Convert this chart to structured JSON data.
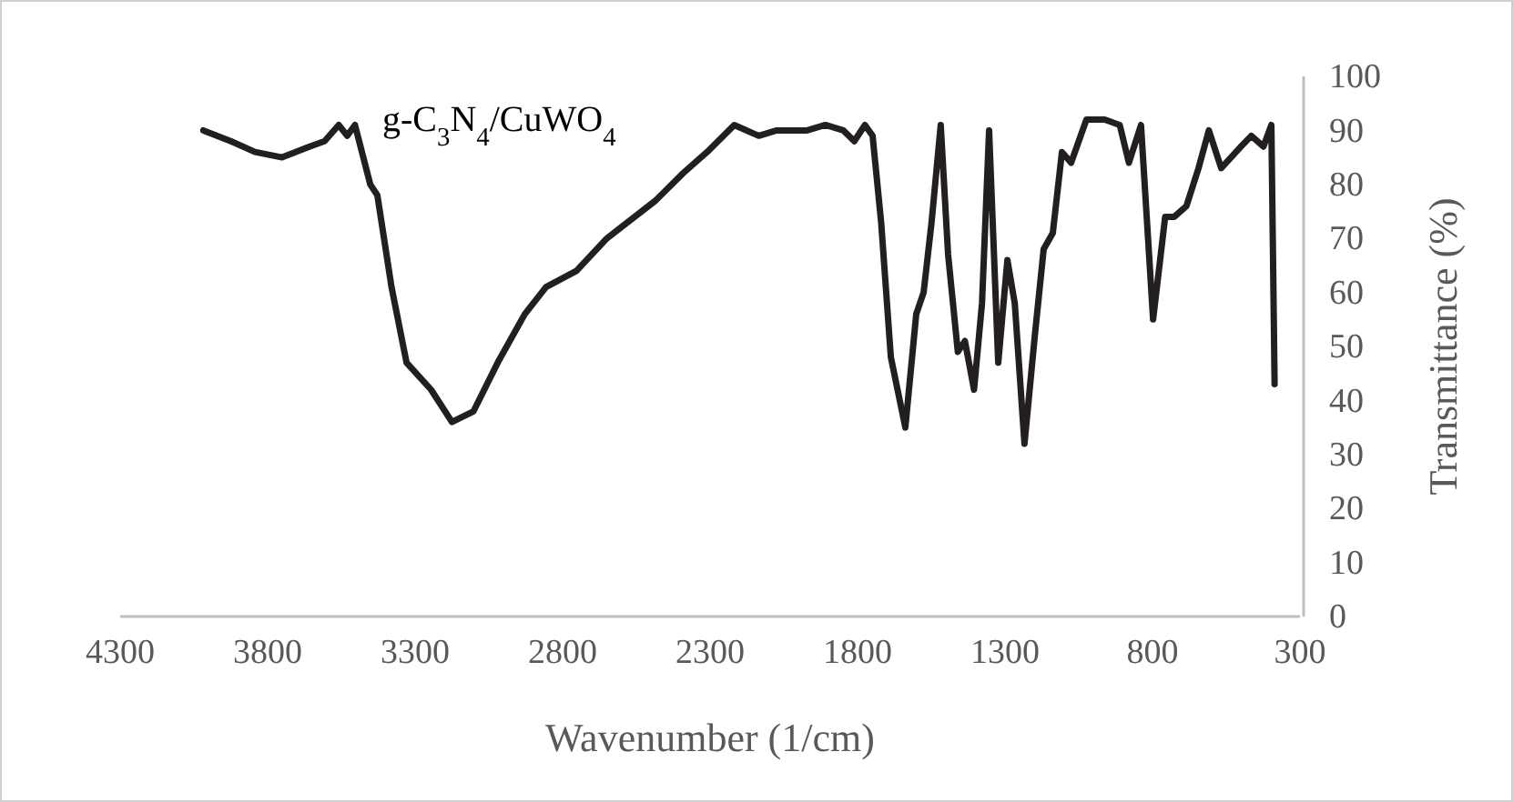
{
  "chart_data": {
    "type": "line",
    "xlabel": "Wavenumber (1/cm)",
    "ylabel": "Transmittance (%)",
    "xlim": [
      4300,
      300
    ],
    "xticks": [
      4300,
      3800,
      3300,
      2800,
      2300,
      1800,
      1300,
      800,
      300
    ],
    "ylim": [
      0,
      100
    ],
    "yticks": [
      0,
      10,
      20,
      30,
      40,
      50,
      60,
      70,
      80,
      90,
      100
    ],
    "grid": false,
    "marker": "none",
    "line_style": "solid",
    "legend": false,
    "series": [
      {
        "name": "g-C$_{3}$N$_{4}$/CuWO$_{4}$",
        "color": "#231f20",
        "x": [
          4018,
          3925,
          3843,
          3751,
          3658,
          3607,
          3559,
          3530,
          3504,
          3452,
          3428,
          3380,
          3329,
          3246,
          3175,
          3102,
          3020,
          2928,
          2856,
          2753,
          2650,
          2485,
          2393,
          2310,
          2218,
          2135,
          2074,
          1971,
          1909,
          1848,
          1811,
          1775,
          1749,
          1720,
          1687,
          1638,
          1601,
          1576,
          1549,
          1518,
          1493,
          1460,
          1436,
          1405,
          1378,
          1354,
          1323,
          1292,
          1267,
          1234,
          1199,
          1169,
          1138,
          1107,
          1076,
          1024,
          962,
          911,
          880,
          839,
          798,
          757,
          726,
          685,
          644,
          609,
          567,
          500,
          465,
          424,
          397,
          386
        ],
        "values": [
          90,
          88,
          86,
          85,
          87,
          88,
          91,
          89,
          91,
          80,
          78,
          61,
          47,
          42,
          36,
          38,
          47,
          56,
          61,
          64,
          70,
          77,
          82,
          86,
          91,
          89,
          90,
          90,
          91,
          90,
          88,
          91,
          89,
          73,
          48,
          35,
          56,
          60,
          73,
          91,
          67,
          49,
          51,
          42,
          58,
          90,
          47,
          66,
          58,
          32,
          52,
          68,
          71,
          86,
          84,
          92,
          92,
          91,
          84,
          91,
          55,
          74,
          74,
          76,
          83,
          90,
          83,
          87,
          89,
          87,
          91,
          43
        ]
      }
    ]
  }
}
